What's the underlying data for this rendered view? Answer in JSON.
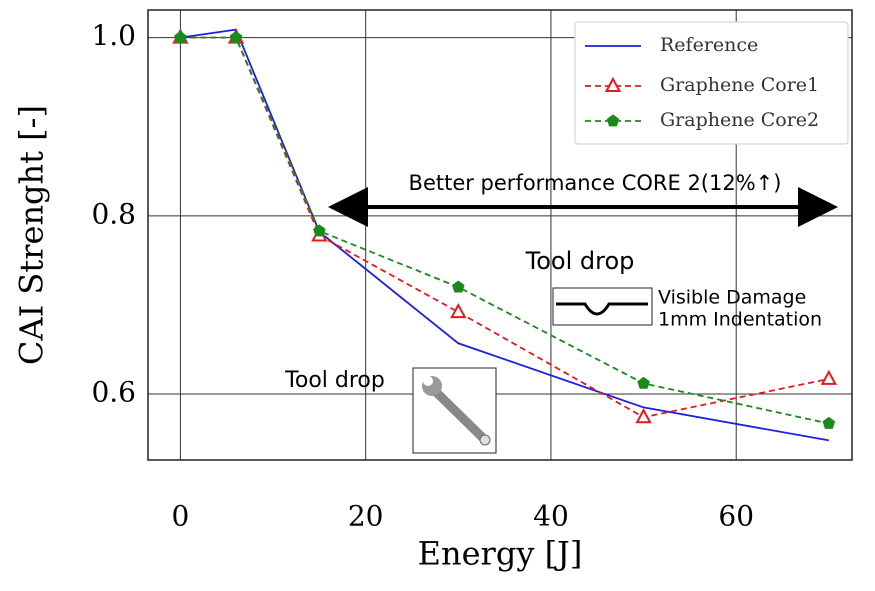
{
  "chart_data": {
    "type": "line",
    "xlabel": "Energy [J]",
    "ylabel": "CAI Strenght [-]",
    "x": [
      0,
      6,
      15,
      30,
      50,
      70
    ],
    "series": [
      {
        "name": "Reference",
        "color": "#1f1fe0",
        "dash": "solid",
        "marker": "none",
        "values": [
          1.0,
          1.009,
          0.782,
          0.657,
          0.585,
          0.548
        ]
      },
      {
        "name": "Graphene Core1",
        "color": "#e41a1c",
        "dash": "dashed",
        "marker": "triangle",
        "values": [
          1.0,
          1.0,
          0.778,
          0.692,
          0.574,
          0.617
        ]
      },
      {
        "name": "Graphene Core2",
        "color": "#1a8a1a",
        "dash": "dashed",
        "marker": "pentagon",
        "values": [
          1.0,
          1.0,
          0.783,
          0.72,
          0.612,
          0.567
        ]
      }
    ],
    "xlim": [
      -3.5,
      72.5
    ],
    "ylim": [
      0.526,
      1.031
    ],
    "xticks": [
      0,
      20,
      40,
      60
    ],
    "yticks": [
      {
        "value": 0.6,
        "label": "0.6"
      },
      {
        "value": 0.8,
        "label": "0.8"
      },
      {
        "value": 1.0,
        "label": "1.0"
      }
    ],
    "grid": true,
    "legend": "upper right",
    "annotations": [
      "Better performance CORE 2(12%↑)",
      "Tool drop",
      "Tool drop",
      "Visible Damage",
      "1mm Indentation"
    ]
  }
}
